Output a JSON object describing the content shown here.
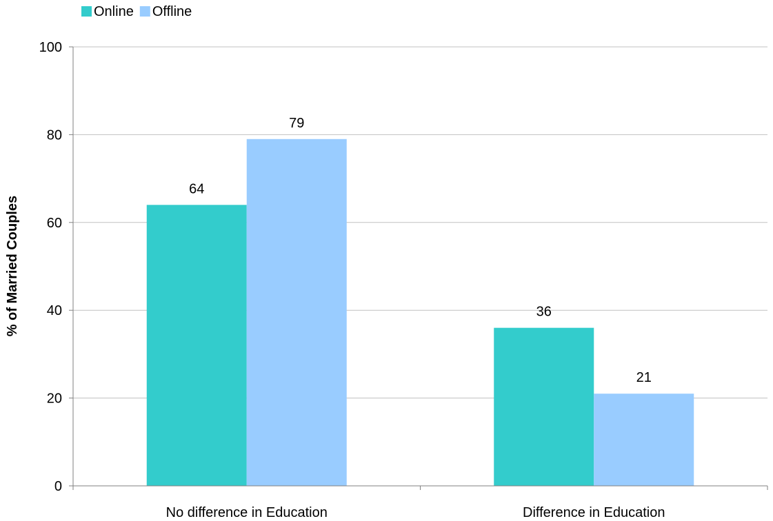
{
  "chart_data": {
    "type": "bar",
    "categories": [
      "No difference in Education",
      "Difference in Education"
    ],
    "series": [
      {
        "name": "Online",
        "values": [
          64,
          36
        ],
        "color": "#33cccc"
      },
      {
        "name": "Offline",
        "values": [
          79,
          21
        ],
        "color": "#99ccff"
      }
    ],
    "data_labels": [
      [
        "64",
        "36"
      ],
      [
        "79",
        "21"
      ]
    ],
    "ylabel": "% of Married Couples",
    "xlabel": "",
    "ylim": [
      0,
      100
    ],
    "yticks": [
      0,
      20,
      40,
      60,
      80,
      100
    ],
    "grid": true,
    "legend": "top-left",
    "gridline_color": "#c0c0c0",
    "axis_color": "#808080"
  }
}
